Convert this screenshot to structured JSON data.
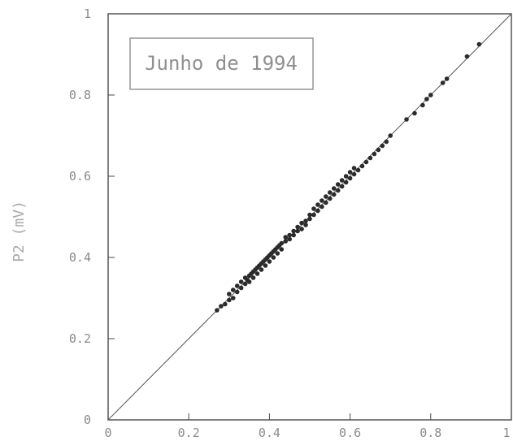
{
  "chart_data": {
    "type": "scatter",
    "title": "Junho de 1994",
    "xlabel": "",
    "ylabel": "P2 (mV)",
    "xlim": [
      0,
      1
    ],
    "ylim": [
      0,
      1
    ],
    "x_ticks": [
      "0",
      "0.2",
      "0.4",
      "0.6",
      "0.8",
      "1"
    ],
    "y_ticks": [
      "0",
      "0.2",
      "0.4",
      "0.6",
      "0.8",
      "1"
    ],
    "grid": false,
    "reference_line": {
      "from": [
        0,
        0
      ],
      "to": [
        1,
        1
      ]
    },
    "points": [
      [
        0.27,
        0.27
      ],
      [
        0.28,
        0.28
      ],
      [
        0.29,
        0.285
      ],
      [
        0.3,
        0.295
      ],
      [
        0.3,
        0.31
      ],
      [
        0.31,
        0.3
      ],
      [
        0.31,
        0.32
      ],
      [
        0.32,
        0.315
      ],
      [
        0.32,
        0.33
      ],
      [
        0.33,
        0.325
      ],
      [
        0.33,
        0.34
      ],
      [
        0.34,
        0.335
      ],
      [
        0.34,
        0.35
      ],
      [
        0.345,
        0.345
      ],
      [
        0.35,
        0.34
      ],
      [
        0.35,
        0.355
      ],
      [
        0.355,
        0.36
      ],
      [
        0.36,
        0.35
      ],
      [
        0.36,
        0.365
      ],
      [
        0.365,
        0.37
      ],
      [
        0.37,
        0.36
      ],
      [
        0.37,
        0.375
      ],
      [
        0.375,
        0.38
      ],
      [
        0.38,
        0.37
      ],
      [
        0.38,
        0.385
      ],
      [
        0.385,
        0.39
      ],
      [
        0.39,
        0.38
      ],
      [
        0.39,
        0.395
      ],
      [
        0.395,
        0.4
      ],
      [
        0.4,
        0.39
      ],
      [
        0.4,
        0.405
      ],
      [
        0.405,
        0.41
      ],
      [
        0.41,
        0.4
      ],
      [
        0.41,
        0.415
      ],
      [
        0.415,
        0.42
      ],
      [
        0.42,
        0.41
      ],
      [
        0.42,
        0.425
      ],
      [
        0.425,
        0.43
      ],
      [
        0.43,
        0.42
      ],
      [
        0.43,
        0.435
      ],
      [
        0.44,
        0.44
      ],
      [
        0.44,
        0.45
      ],
      [
        0.45,
        0.445
      ],
      [
        0.45,
        0.455
      ],
      [
        0.46,
        0.455
      ],
      [
        0.46,
        0.465
      ],
      [
        0.47,
        0.465
      ],
      [
        0.47,
        0.475
      ],
      [
        0.48,
        0.47
      ],
      [
        0.48,
        0.485
      ],
      [
        0.49,
        0.48
      ],
      [
        0.49,
        0.49
      ],
      [
        0.5,
        0.495
      ],
      [
        0.5,
        0.505
      ],
      [
        0.51,
        0.505
      ],
      [
        0.51,
        0.52
      ],
      [
        0.52,
        0.515
      ],
      [
        0.52,
        0.53
      ],
      [
        0.53,
        0.525
      ],
      [
        0.53,
        0.54
      ],
      [
        0.54,
        0.535
      ],
      [
        0.54,
        0.55
      ],
      [
        0.55,
        0.545
      ],
      [
        0.55,
        0.56
      ],
      [
        0.56,
        0.555
      ],
      [
        0.56,
        0.57
      ],
      [
        0.57,
        0.565
      ],
      [
        0.57,
        0.58
      ],
      [
        0.58,
        0.575
      ],
      [
        0.58,
        0.59
      ],
      [
        0.59,
        0.585
      ],
      [
        0.59,
        0.6
      ],
      [
        0.6,
        0.595
      ],
      [
        0.6,
        0.61
      ],
      [
        0.61,
        0.605
      ],
      [
        0.61,
        0.62
      ],
      [
        0.62,
        0.615
      ],
      [
        0.63,
        0.625
      ],
      [
        0.64,
        0.635
      ],
      [
        0.65,
        0.645
      ],
      [
        0.66,
        0.655
      ],
      [
        0.67,
        0.665
      ],
      [
        0.68,
        0.675
      ],
      [
        0.69,
        0.685
      ],
      [
        0.7,
        0.7
      ],
      [
        0.74,
        0.74
      ],
      [
        0.76,
        0.755
      ],
      [
        0.78,
        0.775
      ],
      [
        0.79,
        0.79
      ],
      [
        0.8,
        0.8
      ],
      [
        0.83,
        0.83
      ],
      [
        0.84,
        0.84
      ],
      [
        0.89,
        0.895
      ],
      [
        0.92,
        0.925
      ]
    ]
  }
}
